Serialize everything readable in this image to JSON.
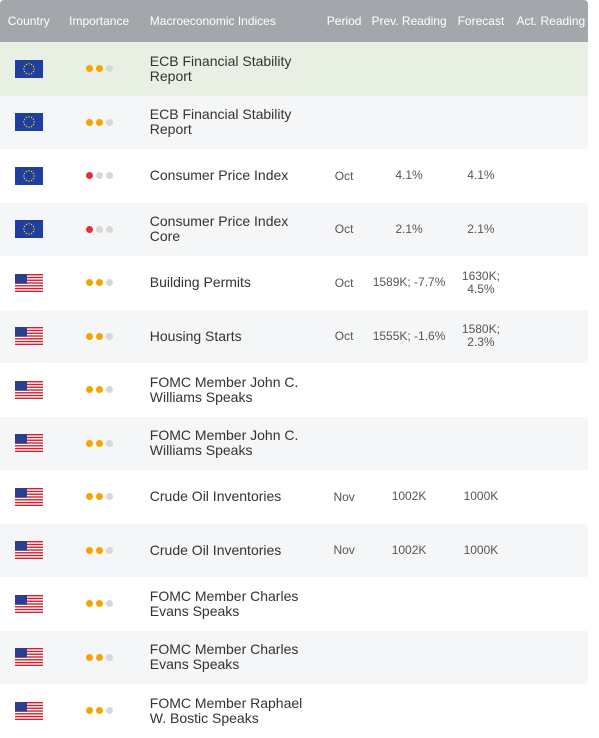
{
  "header": {
    "country": "Country",
    "importance": "Importance",
    "macro": "Macroeconomic Indices",
    "period": "Period",
    "prev": "Prev. Reading",
    "forecast": "Forecast",
    "actual": "Act. Reading"
  },
  "colors": {
    "header_bg": "#a3a7ab",
    "importance_orange": "#f5a500",
    "importance_red": "#e0303a",
    "highlight_row": "#e7f0e2"
  },
  "rows": [
    {
      "country": "EU",
      "importance": {
        "level": 2,
        "color": "orange"
      },
      "name": "ECB Financial Stability Report",
      "period": "",
      "prev": "",
      "forecast": "",
      "actual": ""
    },
    {
      "country": "EU",
      "importance": {
        "level": 2,
        "color": "orange"
      },
      "name": "ECB Financial Stability Report",
      "period": "",
      "prev": "",
      "forecast": "",
      "actual": ""
    },
    {
      "country": "EU",
      "importance": {
        "level": 1,
        "color": "red"
      },
      "name": "Consumer Price Index",
      "period": "Oct",
      "prev": "4.1%",
      "forecast": "4.1%",
      "actual": ""
    },
    {
      "country": "EU",
      "importance": {
        "level": 1,
        "color": "red"
      },
      "name": "Consumer Price Index Core",
      "period": "Oct",
      "prev": "2.1%",
      "forecast": "2.1%",
      "actual": ""
    },
    {
      "country": "US",
      "importance": {
        "level": 2,
        "color": "orange"
      },
      "name": "Building Permits",
      "period": "Oct",
      "prev": "1589K; -7.7%",
      "forecast": "1630K; 4.5%",
      "actual": ""
    },
    {
      "country": "US",
      "importance": {
        "level": 2,
        "color": "orange"
      },
      "name": "Housing Starts",
      "period": "Oct",
      "prev": "1555K; -1.6%",
      "forecast": "1580K; 2.3%",
      "actual": ""
    },
    {
      "country": "US",
      "importance": {
        "level": 2,
        "color": "orange"
      },
      "name": "FOMC Member John C. Williams Speaks",
      "period": "",
      "prev": "",
      "forecast": "",
      "actual": ""
    },
    {
      "country": "US",
      "importance": {
        "level": 2,
        "color": "orange"
      },
      "name": "FOMC Member John C. Williams Speaks",
      "period": "",
      "prev": "",
      "forecast": "",
      "actual": ""
    },
    {
      "country": "US",
      "importance": {
        "level": 2,
        "color": "orange"
      },
      "name": "Crude Oil Inventories",
      "period": "Nov",
      "prev": "1002K",
      "forecast": "1000K",
      "actual": ""
    },
    {
      "country": "US",
      "importance": {
        "level": 2,
        "color": "orange"
      },
      "name": "Crude Oil Inventories",
      "period": "Nov",
      "prev": "1002K",
      "forecast": "1000K",
      "actual": ""
    },
    {
      "country": "US",
      "importance": {
        "level": 2,
        "color": "orange"
      },
      "name": "FOMC Member Charles Evans Speaks",
      "period": "",
      "prev": "",
      "forecast": "",
      "actual": ""
    },
    {
      "country": "US",
      "importance": {
        "level": 2,
        "color": "orange"
      },
      "name": "FOMC Member Charles Evans Speaks",
      "period": "",
      "prev": "",
      "forecast": "",
      "actual": ""
    },
    {
      "country": "US",
      "importance": {
        "level": 2,
        "color": "orange"
      },
      "name": "FOMC Member Raphael W. Bostic Speaks",
      "period": "",
      "prev": "",
      "forecast": "",
      "actual": ""
    }
  ]
}
